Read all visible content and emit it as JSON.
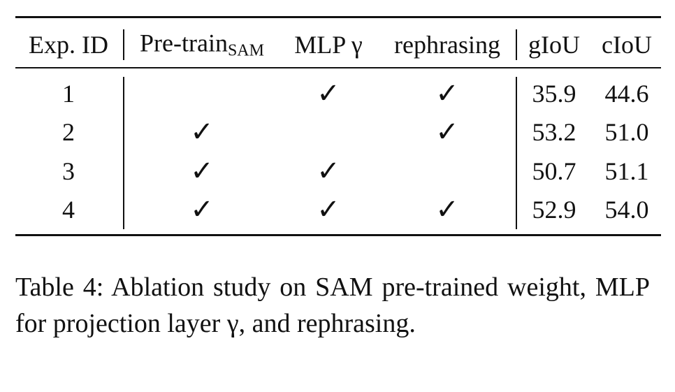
{
  "table": {
    "header": [
      {
        "text": "Exp. ID"
      },
      {
        "text": "Pre-train",
        "subscript": "SAM"
      },
      {
        "text": "MLP γ"
      },
      {
        "text": "rephrasing"
      },
      {
        "text": "gIoU"
      },
      {
        "text": "cIoU"
      }
    ],
    "rows": [
      [
        "1",
        null,
        "✓",
        "✓",
        "35.9",
        "44.6"
      ],
      [
        "2",
        "✓",
        null,
        "✓",
        "53.2",
        "51.0"
      ],
      [
        "3",
        "✓",
        "✓",
        null,
        "50.7",
        "51.1"
      ],
      [
        "4",
        "✓",
        "✓",
        "✓",
        "52.9",
        "54.0"
      ]
    ]
  },
  "caption": "Table 4:  Ablation study on SAM pre-trained weight, MLP for projection layer γ, and rephrasing."
}
